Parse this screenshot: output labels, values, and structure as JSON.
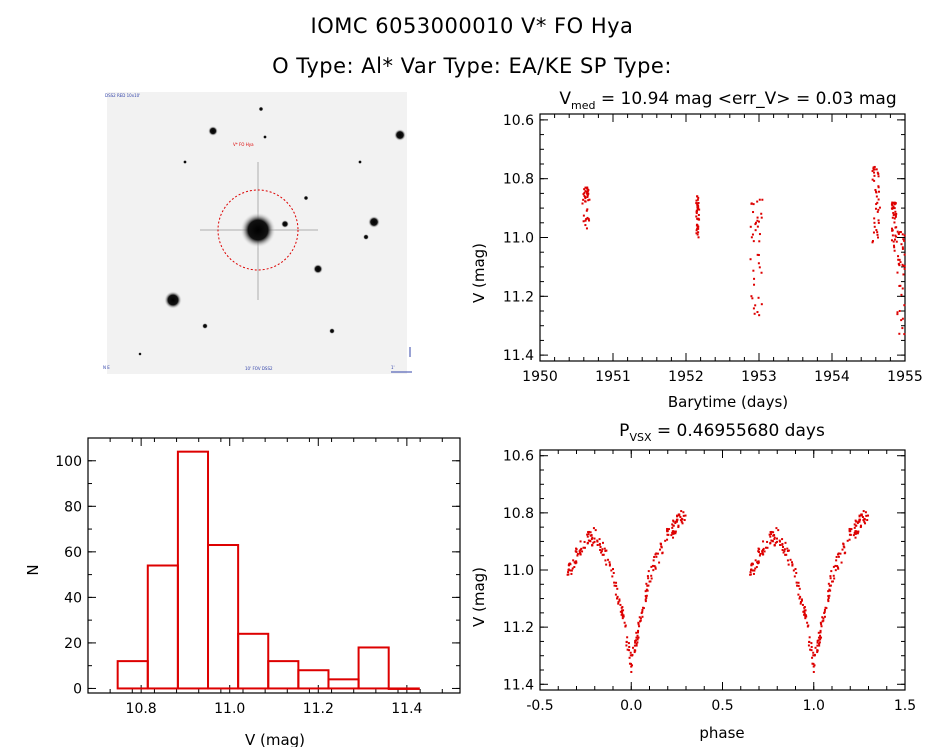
{
  "header": {
    "line1": "IOMC 6053000010    V* FO Hya",
    "line2": "O Type: Al*  Var Type: EA/KE  SP Type:"
  },
  "image_panel": {
    "tag_top_left": "DSS2 RED 10x10'",
    "tag_target": "V* FO Hya",
    "tag_bottom_left": "N E",
    "tag_bottom_mid": "10' FOV DSS2",
    "tag_bottom_right": "1'"
  },
  "colors": {
    "data": "#dd0000",
    "axis": "#000000"
  },
  "chart_data": [
    {
      "id": "lightcurve",
      "type": "scatter",
      "title_main": "V",
      "title_sub": "med",
      "title_rest": " = 10.94 mag <err_V> = 0.03 mag",
      "xlabel": "Barytime (days)",
      "ylabel": "V (mag)",
      "xlim": [
        1950,
        1955
      ],
      "ylim": [
        11.42,
        10.58
      ],
      "xticks": [
        "1950",
        "1951",
        "1952",
        "1953",
        "1954",
        "1955"
      ],
      "yticks": [
        "10.6",
        "10.8",
        "11.0",
        "11.2",
        "11.4"
      ],
      "clusters": [
        {
          "x": [
            1950.58,
            1950.68
          ],
          "y": [
            10.83,
            10.97
          ]
        },
        {
          "x": [
            1952.14,
            1952.18
          ],
          "y": [
            10.86,
            11.0
          ]
        },
        {
          "x": [
            1952.88,
            1953.05
          ],
          "y": [
            10.87,
            11.27
          ]
        },
        {
          "x": [
            1954.55,
            1954.66
          ],
          "y": [
            10.76,
            11.02
          ]
        },
        {
          "x": [
            1954.82,
            1954.88
          ],
          "y": [
            10.88,
            11.05
          ]
        },
        {
          "x": [
            1954.88,
            1955.0
          ],
          "y": [
            10.98,
            11.35
          ]
        }
      ]
    },
    {
      "id": "histogram",
      "type": "bar",
      "xlabel": "V (mag)",
      "ylabel": "N",
      "xlim": [
        10.68,
        11.52
      ],
      "ylim": [
        -2,
        110
      ],
      "xticks": [
        "10.8",
        "11.0",
        "11.2",
        "11.4"
      ],
      "yticks": [
        "0",
        "20",
        "40",
        "60",
        "80",
        "100"
      ],
      "bin_edges": [
        10.747,
        10.815,
        10.883,
        10.951,
        11.019,
        11.087,
        11.155,
        11.223,
        11.291,
        11.359,
        11.427
      ],
      "counts": [
        12,
        54,
        104,
        63,
        24,
        12,
        8,
        4,
        18,
        0
      ]
    },
    {
      "id": "phased",
      "type": "scatter",
      "title_main": "P",
      "title_sub": "VSX",
      "title_rest": " = 0.46955680 days",
      "xlabel": "phase",
      "ylabel": "V (mag)",
      "period_days": 0.4695568,
      "xlim": [
        -0.5,
        1.5
      ],
      "ylim": [
        11.42,
        10.58
      ],
      "xticks": [
        "-0.5",
        "0.0",
        "0.5",
        "1.0",
        "1.5"
      ],
      "yticks": [
        "10.6",
        "10.8",
        "11.0",
        "11.2",
        "11.4"
      ],
      "curve_phase": [
        -0.35,
        -0.3,
        -0.25,
        -0.2,
        -0.15,
        -0.1,
        -0.05,
        0.0,
        0.05,
        0.1,
        0.15,
        0.2,
        0.25,
        0.3
      ],
      "curve_mag": [
        11.02,
        10.95,
        10.9,
        10.88,
        10.93,
        11.02,
        11.15,
        11.33,
        11.18,
        11.02,
        10.95,
        10.88,
        10.84,
        10.79
      ]
    }
  ]
}
